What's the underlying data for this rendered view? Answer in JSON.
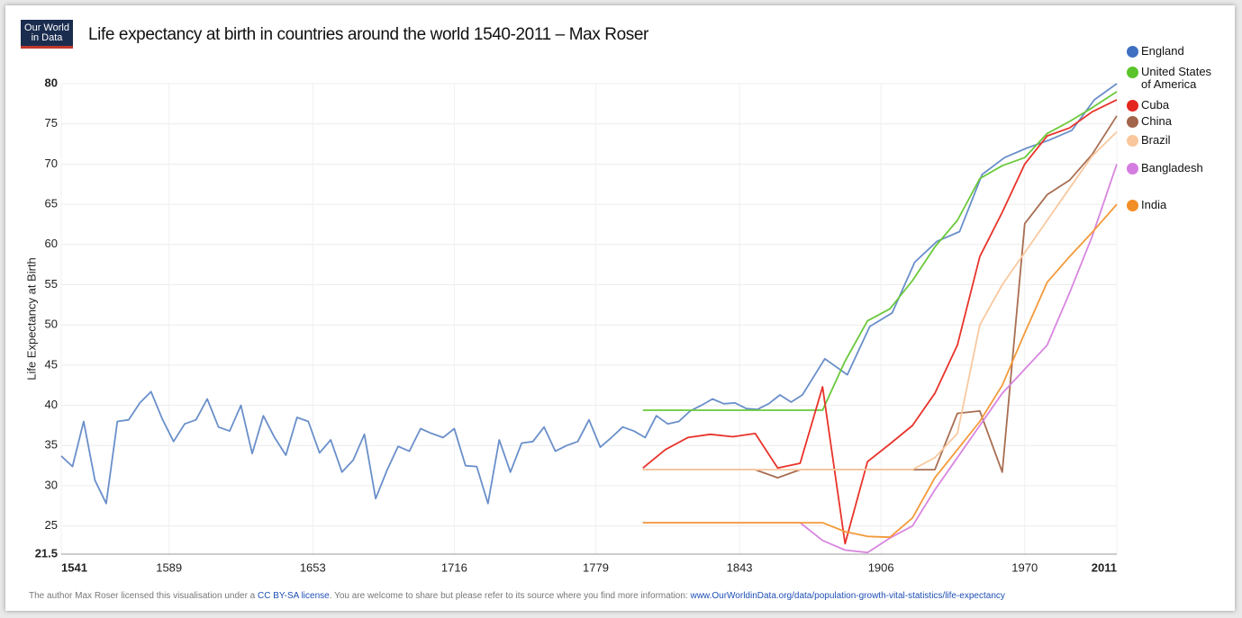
{
  "logo": "Our World in Data",
  "footer": {
    "text1": "The author Max Roser licensed this visualisation under a ",
    "link1": "CC BY-SA license",
    "text2": ". You are welcome to share but please refer to its source where you find more information: ",
    "link2": "www.OurWorldinData.org/data/population-growth-vital-statistics/life-expectancy"
  },
  "chart_data": {
    "type": "line",
    "title": "Life expectancy at birth in countries around the world 1540-2011 – Max Roser",
    "y_label": "Life Expectancy at Birth",
    "xlim": [
      1541,
      2011
    ],
    "xticks": [
      1541,
      1589,
      1653,
      1716,
      1779,
      1843,
      1906,
      1970,
      2011
    ],
    "ylim": [
      21.5,
      80
    ],
    "yticks": [
      21.5,
      25,
      30,
      35,
      40,
      45,
      50,
      55,
      60,
      65,
      70,
      75,
      80
    ],
    "grid": true,
    "legend": "right",
    "series": [
      {
        "name": "England",
        "color": "#6a8fca",
        "legend_color": "#3f6fc0",
        "x": [
          1541,
          1546,
          1551,
          1556,
          1561,
          1566,
          1571,
          1576,
          1581,
          1586,
          1591,
          1596,
          1601,
          1606,
          1611,
          1616,
          1621,
          1626,
          1631,
          1636,
          1641,
          1646,
          1651,
          1656,
          1661,
          1666,
          1671,
          1676,
          1681,
          1686,
          1691,
          1696,
          1701,
          1706,
          1711,
          1716,
          1721,
          1726,
          1731,
          1736,
          1741,
          1746,
          1751,
          1756,
          1761,
          1766,
          1771,
          1776,
          1781,
          1786,
          1791,
          1796,
          1801,
          1806,
          1811,
          1816,
          1821,
          1826,
          1831,
          1836,
          1841,
          1846,
          1851,
          1856,
          1861,
          1866,
          1871,
          1881,
          1891,
          1901,
          1911,
          1921,
          1931,
          1941,
          1951,
          1961,
          1971,
          1981,
          1991,
          2001,
          2011
        ],
        "values": [
          33.7,
          32.4,
          38,
          30.7,
          27.8,
          38,
          38.2,
          40.3,
          41.7,
          38.3,
          35.5,
          37.7,
          38.2,
          40.8,
          37.3,
          36.8,
          40,
          34,
          38.7,
          36,
          33.8,
          38.5,
          38,
          34.1,
          35.7,
          31.7,
          33.2,
          36.4,
          28.4,
          31.9,
          34.9,
          34.3,
          37.1,
          36.5,
          36,
          37.1,
          32.5,
          32.4,
          27.8,
          35.7,
          31.7,
          35.3,
          35.5,
          37.3,
          34.3,
          35,
          35.5,
          38.2,
          34.8,
          36,
          37.3,
          36.8,
          36,
          38.7,
          37.7,
          38,
          39.3,
          40,
          40.8,
          40.2,
          40.3,
          39.6,
          39.5,
          40.2,
          41.3,
          40.4,
          41.3,
          45.8,
          43.8,
          49.8,
          51.5,
          57.8,
          60.4,
          61.6,
          68.7,
          70.8,
          72,
          73,
          74.2,
          78,
          80
        ]
      },
      {
        "name": "United States of America",
        "color": "#6ac93a",
        "legend_color": "#5ac42a",
        "x": [
          1800,
          1810,
          1820,
          1830,
          1840,
          1850,
          1860,
          1870,
          1880,
          1890,
          1900,
          1910,
          1920,
          1930,
          1940,
          1950,
          1960,
          1970,
          1980,
          1990,
          2000,
          2011
        ],
        "values": [
          39.4,
          39.4,
          39.4,
          39.4,
          39.4,
          39.4,
          39.4,
          39.4,
          39.4,
          45.5,
          50.5,
          52,
          55.5,
          59.7,
          63,
          68.2,
          69.8,
          70.8,
          73.8,
          75.3,
          77,
          79
        ]
      },
      {
        "name": "Cuba",
        "color": "#e8332a",
        "legend_color": "#e3271f",
        "x": [
          1800,
          1810,
          1820,
          1830,
          1840,
          1850,
          1860,
          1870,
          1880,
          1890,
          1900,
          1910,
          1920,
          1930,
          1940,
          1950,
          1960,
          1970,
          1980,
          1990,
          2000,
          2011
        ],
        "values": [
          32.2,
          34.5,
          36,
          36.4,
          36.1,
          36.5,
          32.2,
          32.8,
          42.3,
          22.8,
          33,
          35.2,
          37.5,
          41.5,
          47.5,
          58.5,
          64,
          70,
          73.5,
          74.5,
          76.5,
          78
        ]
      },
      {
        "name": "China",
        "color": "#a86e52",
        "legend_color": "#a2644a",
        "x": [
          1800,
          1810,
          1820,
          1830,
          1840,
          1850,
          1860,
          1870,
          1880,
          1890,
          1900,
          1910,
          1920,
          1930,
          1940,
          1950,
          1960,
          1970,
          1980,
          1990,
          2000,
          2011
        ],
        "values": [
          32,
          32,
          32,
          32,
          32,
          32,
          31,
          32,
          32,
          32,
          32,
          32,
          32,
          32,
          39,
          39.3,
          31.7,
          62.6,
          66.2,
          68,
          71.2,
          76
        ]
      },
      {
        "name": "Brazil",
        "color": "#f8c9a0",
        "legend_color": "#f9c79b",
        "x": [
          1800,
          1810,
          1820,
          1830,
          1840,
          1850,
          1860,
          1870,
          1880,
          1890,
          1900,
          1910,
          1920,
          1930,
          1940,
          1950,
          1960,
          1970,
          1980,
          1990,
          2000,
          2011
        ],
        "values": [
          32,
          32,
          32,
          32,
          32,
          32,
          32,
          32,
          32,
          32,
          32,
          32,
          32,
          33.5,
          36.5,
          50,
          55,
          59,
          63,
          67,
          71,
          74
        ]
      },
      {
        "name": "Bangladesh",
        "color": "#d886e0",
        "legend_color": "#d57ce0",
        "x": [
          1800,
          1810,
          1820,
          1830,
          1840,
          1850,
          1860,
          1870,
          1880,
          1890,
          1900,
          1910,
          1920,
          1930,
          1940,
          1950,
          1960,
          1970,
          1980,
          1990,
          2000,
          2011
        ],
        "values": [
          25.4,
          25.4,
          25.4,
          25.4,
          25.4,
          25.4,
          25.4,
          25.4,
          23.2,
          22,
          21.7,
          23.5,
          25,
          29.5,
          33.5,
          37.5,
          41.5,
          44.5,
          47.5,
          54,
          61,
          70
        ]
      },
      {
        "name": "India",
        "color": "#f39a3a",
        "legend_color": "#f28e26",
        "x": [
          1800,
          1810,
          1820,
          1830,
          1840,
          1850,
          1860,
          1870,
          1880,
          1890,
          1900,
          1910,
          1920,
          1930,
          1940,
          1950,
          1960,
          1970,
          1980,
          1990,
          2000,
          2011
        ],
        "values": [
          25.4,
          25.4,
          25.4,
          25.4,
          25.4,
          25.4,
          25.4,
          25.4,
          25.4,
          24.3,
          23.7,
          23.6,
          26,
          31,
          34.5,
          38,
          42.5,
          49,
          55.3,
          58.5,
          61.5,
          65
        ]
      }
    ]
  }
}
